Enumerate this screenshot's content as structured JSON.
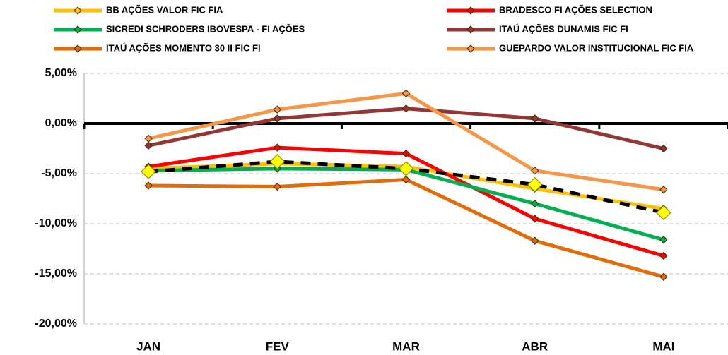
{
  "chart_data": {
    "type": "line",
    "categories": [
      "JAN",
      "FEV",
      "MAR",
      "ABR",
      "MAI"
    ],
    "series": [
      {
        "name": "BB AÇÕES VALOR FIC FIA",
        "color": "#FFC000",
        "values": [
          -4.5,
          -4.0,
          -4.3,
          -6.5,
          -8.5
        ]
      },
      {
        "name": "BRADESCO FI AÇÕES SELECTION",
        "color": "#FF0000",
        "values": [
          -4.3,
          -2.4,
          -3.0,
          -9.5,
          -13.2
        ]
      },
      {
        "name": "SICREDI SCHRODERS IBOVESPA - FI AÇÕES",
        "color": "#00B050",
        "values": [
          -4.7,
          -4.5,
          -4.6,
          -8.0,
          -11.6
        ]
      },
      {
        "name": "ITAÚ AÇÕES DUNAMIS FIC FI",
        "color": "#943634",
        "values": [
          -2.2,
          0.5,
          1.5,
          0.5,
          -2.5
        ]
      },
      {
        "name": "ITAÚ AÇÕES MOMENTO 30 II FIC FI",
        "color": "#E36C09",
        "values": [
          -6.2,
          -6.3,
          -5.6,
          -11.7,
          -15.3
        ]
      },
      {
        "name": "GUEPARDO VALOR INSTITUCIONAL FIC FIA",
        "color": "#F79646",
        "values": [
          -1.5,
          1.4,
          3.0,
          -4.7,
          -6.6
        ]
      },
      {
        "color": "#000000",
        "dashed": true,
        "marker_color": "#FFFF00",
        "values": [
          -4.8,
          -3.8,
          -4.5,
          -6.1,
          -8.9
        ]
      }
    ],
    "ylim": [
      -20,
      5
    ],
    "yticks": [
      {
        "value": -20,
        "label": "-20,00%"
      },
      {
        "value": -15,
        "label": "-15,00%"
      },
      {
        "value": -10,
        "label": "-10,00%"
      },
      {
        "value": -5,
        "label": "-5,00%"
      },
      {
        "value": 0,
        "label": "0,00%"
      },
      {
        "value": 5,
        "label": "5,00%"
      }
    ],
    "grid": true,
    "legend": "top"
  }
}
